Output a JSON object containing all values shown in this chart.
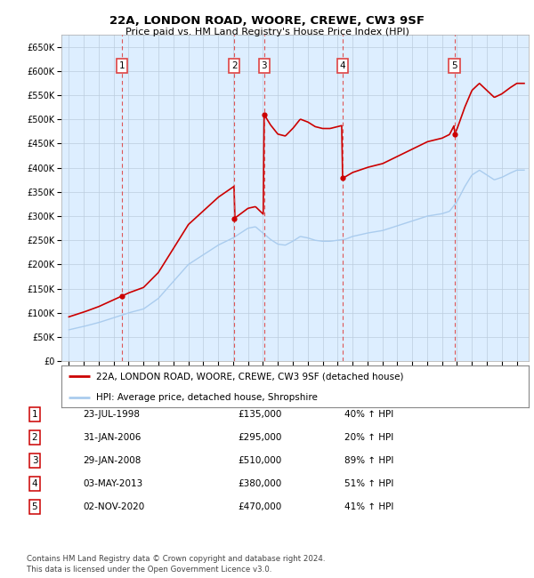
{
  "title": "22A, LONDON ROAD, WOORE, CREWE, CW3 9SF",
  "subtitle": "Price paid vs. HM Land Registry's House Price Index (HPI)",
  "transactions": [
    {
      "num": 1,
      "date_str": "23-JUL-1998",
      "price": 135000,
      "pct_str": "40% ↑ HPI",
      "x_year": 1998.56
    },
    {
      "num": 2,
      "date_str": "31-JAN-2006",
      "price": 295000,
      "pct_str": "20% ↑ HPI",
      "x_year": 2006.08
    },
    {
      "num": 3,
      "date_str": "29-JAN-2008",
      "price": 510000,
      "pct_str": "89% ↑ HPI",
      "x_year": 2008.08
    },
    {
      "num": 4,
      "date_str": "03-MAY-2013",
      "price": 380000,
      "pct_str": "51% ↑ HPI",
      "x_year": 2013.33
    },
    {
      "num": 5,
      "date_str": "02-NOV-2020",
      "price": 470000,
      "pct_str": "41% ↑ HPI",
      "x_year": 2020.83
    }
  ],
  "price_strs": [
    "£135,000",
    "£295,000",
    "£510,000",
    "£380,000",
    "£470,000"
  ],
  "legend_labels": [
    "22A, LONDON ROAD, WOORE, CREWE, CW3 9SF (detached house)",
    "HPI: Average price, detached house, Shropshire"
  ],
  "legend_colors": [
    "#cc0000",
    "#aaccee"
  ],
  "footer": "Contains HM Land Registry data © Crown copyright and database right 2024.\nThis data is licensed under the Open Government Licence v3.0.",
  "ylim": [
    0,
    675000
  ],
  "yticks": [
    0,
    50000,
    100000,
    150000,
    200000,
    250000,
    300000,
    350000,
    400000,
    450000,
    500000,
    550000,
    600000,
    650000
  ],
  "xlim_start": 1994.5,
  "xlim_end": 2025.8,
  "plot_bg": "#ddeeff",
  "red_color": "#cc0000",
  "blue_color": "#aaccee",
  "vline_color": "#dd4444",
  "grid_color": "#bbccdd"
}
